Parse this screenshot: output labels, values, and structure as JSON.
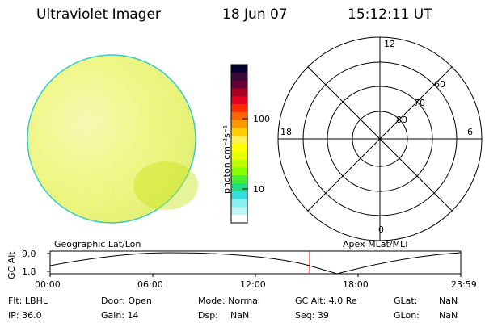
{
  "header": {
    "title": "Ultraviolet Imager",
    "date": "18 Jun 07",
    "time": "15:12:11 UT"
  },
  "colorbar": {
    "unit_label": "photon cm⁻²s⁻¹",
    "ticks": [
      "100",
      "10"
    ],
    "colors": [
      "#000033",
      "#3a0a3a",
      "#66003a",
      "#aa0022",
      "#e60020",
      "#ff2a00",
      "#ff6600",
      "#ff9900",
      "#ffcc00",
      "#ffee55",
      "#ffff00",
      "#e8ff00",
      "#bbff00",
      "#88ff00",
      "#44ee33",
      "#22dd88",
      "#33dddd",
      "#88eeee",
      "#bbf5f5",
      "#ffffff"
    ]
  },
  "polar": {
    "labels": {
      "top": "12",
      "bottom": "0",
      "left": "18",
      "right": "6"
    },
    "lat_labels": [
      "60",
      "70",
      "80"
    ]
  },
  "timeline": {
    "left_label": "Geographic Lat/Lon",
    "right_label": "Apex MLat/MLT",
    "ylabel": "GC Alt",
    "ticks_y": [
      "9.0",
      "1.8"
    ],
    "ticks_x": [
      "00:00",
      "06:00",
      "12:00",
      "18:00",
      "23:59"
    ]
  },
  "status": {
    "row1": {
      "flt": "Flt: LBHL",
      "door": "Door: Open",
      "mode": "Mode: Normal",
      "gcalt": "GC Alt: 4.0 Re",
      "glat_label": "GLat:",
      "glat_val": "NaN"
    },
    "row2": {
      "ip": "IP: 36.0",
      "gain": "Gain: 14",
      "dsp_label": "Dsp:",
      "dsp_val": "NaN",
      "seq": "Seq: 39",
      "glon_label": "GLon:",
      "glon_val": "NaN"
    }
  }
}
